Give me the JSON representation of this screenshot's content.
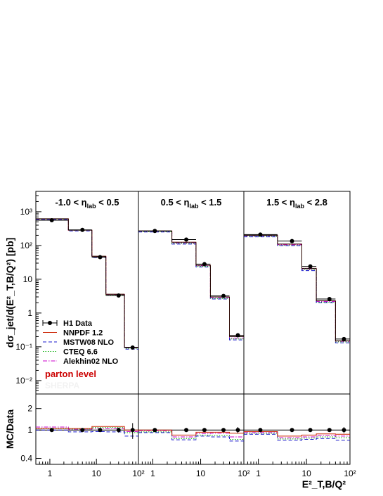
{
  "chart_data": {
    "type": "line",
    "ylabel_main": "dσ_jet/d(E²_T,B/Q²) [pb]",
    "ylabel_ratio": "MC/Data",
    "xlabel": "E²_T,B/Q²",
    "x_log": true,
    "y_log": true,
    "ylim_main": [
      0.004,
      4000
    ],
    "ylim_ratio": [
      0.33,
      3.2
    ],
    "x_edges": [
      0.5,
      2.5,
      8.0,
      16.0,
      40.0,
      80.0
    ],
    "x_centers": [
      1.1,
      5.0,
      12.0,
      30.0,
      60.0
    ],
    "x_ticks": [
      {
        "value": 1,
        "label": "1"
      },
      {
        "value": 10,
        "label": "10"
      },
      {
        "value": 100,
        "label": "10²"
      }
    ],
    "y_ticks_main": [
      {
        "value": 0.01,
        "label": "10⁻²"
      },
      {
        "value": 0.1,
        "label": "10⁻¹"
      },
      {
        "value": 1,
        "label": "1"
      },
      {
        "value": 10,
        "label": "10"
      },
      {
        "value": 100,
        "label": "10²"
      },
      {
        "value": 1000,
        "label": "10³"
      }
    ],
    "y_ticks_ratio": [
      {
        "value": 0.4,
        "label": "0.4"
      },
      {
        "value": 1,
        "label": "1"
      },
      {
        "value": 2,
        "label": "2"
      }
    ],
    "annotation": {
      "text": "parton level",
      "color": "#cc0000"
    },
    "faint_label": {
      "text": "SHERPA",
      "color": "#f2f2f2"
    },
    "colors": {
      "data": "#000000",
      "NNPDF 1.2": "#cc2200",
      "MSTW08 NLO": "#1a1acc",
      "CTEQ 6.6": "#00aa00",
      "Alekhin02 NLO": "#cc00cc"
    },
    "legend": [
      {
        "name": "H1 Data",
        "style": "data"
      },
      {
        "name": "NNPDF 1.2",
        "style": "solid"
      },
      {
        "name": "MSTW08 NLO",
        "style": "dashed"
      },
      {
        "name": "CTEQ 6.6",
        "style": "dotted"
      },
      {
        "name": "Alekhin02 NLO",
        "style": "dashdot"
      }
    ],
    "panels": [
      {
        "label": "-1.0 < η_lab < 0.5",
        "label_parts": {
          "pre": "-1.0 < η",
          "sub": "lab",
          "post": " < 0.5"
        },
        "data": [
          560,
          290,
          45,
          3.3,
          0.095
        ],
        "data_err": [
          60,
          30,
          5,
          0.35,
          0.012
        ],
        "series": [
          {
            "name": "NNPDF 1.2",
            "values": [
              620,
              285,
              48,
              3.6,
              0.097
            ]
          },
          {
            "name": "MSTW08 NLO",
            "values": [
              590,
              270,
              44,
              3.3,
              0.085
            ]
          },
          {
            "name": "CTEQ 6.6",
            "values": [
              600,
              280,
              46,
              3.4,
              0.09
            ]
          },
          {
            "name": "Alekhin02 NLO",
            "values": [
              610,
              282,
              47,
              3.5,
              0.093
            ]
          }
        ],
        "ratio": {
          "data_err": [
            0.05,
            0.05,
            0.06,
            0.08,
            0.25
          ],
          "series": [
            {
              "name": "NNPDF 1.2",
              "values": [
                1.05,
                1.05,
                1.12,
                1.12,
                1.0
              ]
            },
            {
              "name": "MSTW08 NLO",
              "values": [
                1.0,
                0.94,
                0.95,
                0.94,
                0.82
              ]
            },
            {
              "name": "CTEQ 6.6",
              "values": [
                1.06,
                1.03,
                1.08,
                1.08,
                0.92
              ]
            },
            {
              "name": "Alekhin02 NLO",
              "values": [
                1.1,
                1.02,
                1.05,
                1.05,
                0.95
              ]
            }
          ]
        }
      },
      {
        "label": "0.5 < η_lab < 1.5",
        "label_parts": {
          "pre": "0.5 < η",
          "sub": "lab",
          "post": " < 1.5"
        },
        "data": [
          270,
          150,
          28,
          3.2,
          0.22
        ],
        "data_err": [
          28,
          15,
          3,
          0.35,
          0.03
        ],
        "series": [
          {
            "name": "NNPDF 1.2",
            "values": [
              270,
              125,
              26,
              3.0,
              0.2
            ]
          },
          {
            "name": "MSTW08 NLO",
            "values": [
              250,
              110,
              23,
              2.6,
              0.16
            ]
          },
          {
            "name": "CTEQ 6.6",
            "values": [
              255,
              115,
              24,
              2.7,
              0.17
            ]
          },
          {
            "name": "Alekhin02 NLO",
            "values": [
              265,
              120,
              25,
              2.9,
              0.18
            ]
          }
        ],
        "ratio": {
          "data_err": [
            0.04,
            0.05,
            0.05,
            0.06,
            0.1
          ],
          "series": [
            {
              "name": "NNPDF 1.2",
              "values": [
                1.0,
                0.85,
                0.93,
                0.93,
                0.9
              ]
            },
            {
              "name": "MSTW08 NLO",
              "values": [
                0.92,
                0.73,
                0.82,
                0.8,
                0.7
              ]
            },
            {
              "name": "CTEQ 6.6",
              "values": [
                0.94,
                0.76,
                0.85,
                0.84,
                0.74
              ]
            },
            {
              "name": "Alekhin02 NLO",
              "values": [
                0.98,
                0.8,
                0.89,
                0.9,
                0.8
              ]
            }
          ]
        }
      },
      {
        "label": "1.5 < η_lab < 2.8",
        "label_parts": {
          "pre": "1.5 < η",
          "sub": "lab",
          "post": " < 2.8"
        },
        "data": [
          210,
          135,
          24,
          2.6,
          0.17
        ],
        "data_err": [
          20,
          12,
          2.5,
          0.3,
          0.025
        ],
        "series": [
          {
            "name": "NNPDF 1.2",
            "values": [
              200,
              110,
              21,
              2.3,
              0.15
            ]
          },
          {
            "name": "MSTW08 NLO",
            "values": [
              180,
              98,
              18,
              2.0,
              0.13
            ]
          },
          {
            "name": "CTEQ 6.6",
            "values": [
              185,
              100,
              19,
              2.1,
              0.14
            ]
          },
          {
            "name": "Alekhin02 NLO",
            "values": [
              195,
              105,
              20,
              2.2,
              0.145
            ]
          }
        ],
        "ratio": {
          "data_err": [
            0.04,
            0.05,
            0.05,
            0.06,
            0.1
          ],
          "series": [
            {
              "name": "NNPDF 1.2",
              "values": [
                0.95,
                0.82,
                0.85,
                0.88,
                0.87
              ]
            },
            {
              "name": "MSTW08 NLO",
              "values": [
                0.87,
                0.72,
                0.74,
                0.76,
                0.72
              ]
            },
            {
              "name": "CTEQ 6.6",
              "values": [
                0.9,
                0.75,
                0.77,
                0.8,
                0.78
              ]
            },
            {
              "name": "Alekhin02 NLO",
              "values": [
                0.92,
                0.78,
                0.8,
                0.84,
                0.82
              ]
            }
          ]
        }
      }
    ]
  }
}
